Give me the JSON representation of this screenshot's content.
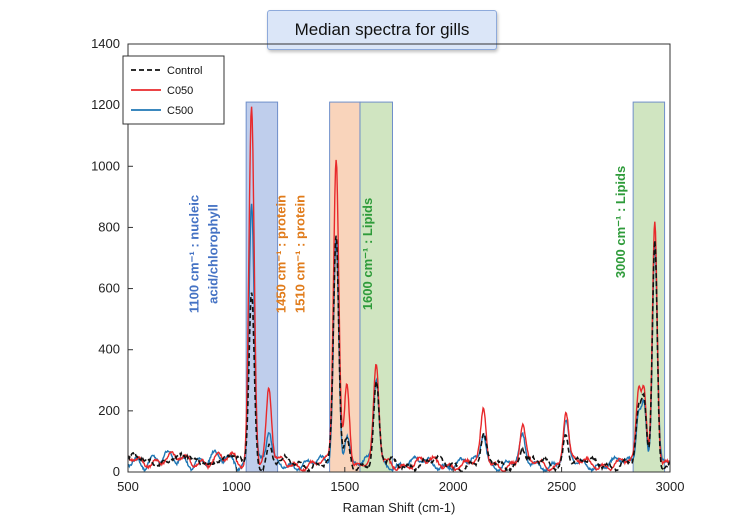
{
  "chart_data": {
    "type": "line",
    "title": "Median spectra for gills",
    "xlabel": "Raman Shift (cm-1)",
    "ylabel": "",
    "xlim": [
      500,
      3000
    ],
    "ylim": [
      0,
      1400
    ],
    "xticks": [
      500,
      1000,
      1500,
      2000,
      2500,
      3000
    ],
    "yticks": [
      0,
      200,
      400,
      600,
      800,
      1000,
      1200,
      1400
    ],
    "grid": false,
    "legend": {
      "position": "top-left",
      "entries": [
        "Control",
        "C050",
        "C500"
      ]
    },
    "series": [
      {
        "name": "Control",
        "color": "#111111",
        "style": "dashed",
        "peaks": [
          [
            1070,
            590
          ],
          [
            1150,
            80
          ],
          [
            1460,
            760
          ],
          [
            1510,
            100
          ],
          [
            1645,
            280
          ],
          [
            2140,
            100
          ],
          [
            2320,
            80
          ],
          [
            2520,
            130
          ],
          [
            2855,
            180
          ],
          [
            2880,
            230
          ],
          [
            2930,
            750
          ]
        ]
      },
      {
        "name": "C050",
        "color": "#e8292b",
        "style": "solid",
        "peaks": [
          [
            1070,
            1200
          ],
          [
            1150,
            265
          ],
          [
            1460,
            1020
          ],
          [
            1510,
            300
          ],
          [
            1645,
            335
          ],
          [
            2140,
            190
          ],
          [
            2320,
            140
          ],
          [
            2520,
            200
          ],
          [
            2855,
            250
          ],
          [
            2880,
            270
          ],
          [
            2930,
            835
          ]
        ]
      },
      {
        "name": "C500",
        "color": "#1f77b4",
        "style": "solid",
        "peaks": [
          [
            1070,
            890
          ],
          [
            1150,
            120
          ],
          [
            1460,
            760
          ],
          [
            1510,
            130
          ],
          [
            1645,
            300
          ],
          [
            2140,
            130
          ],
          [
            2320,
            100
          ],
          [
            2520,
            150
          ],
          [
            2855,
            200
          ],
          [
            2880,
            220
          ],
          [
            2930,
            760
          ]
        ]
      }
    ],
    "regions": [
      {
        "x0": 1045,
        "x1": 1190,
        "color": "#8aa6dd"
      },
      {
        "x0": 1430,
        "x1": 1570,
        "color": "#f4b183"
      },
      {
        "x0": 1570,
        "x1": 1720,
        "color": "#a9d08e"
      },
      {
        "x0": 2830,
        "x1": 2975,
        "color": "#a9d08e"
      }
    ],
    "annotations": [
      {
        "lines": [
          "1100 cm⁻¹ : nucleic",
          "acid/chlorophyll"
        ],
        "color": "#4472c4"
      },
      {
        "lines": [
          "1450 cm⁻¹ : protein",
          "1510 cm⁻¹ : protein"
        ],
        "color": "#e07b1a"
      },
      {
        "lines": [
          "1600 cm⁻¹ : Lipids"
        ],
        "color": "#2e9b3a"
      },
      {
        "lines": [
          "3000 cm⁻¹ : Lipids"
        ],
        "color": "#2e9b3a"
      }
    ]
  }
}
